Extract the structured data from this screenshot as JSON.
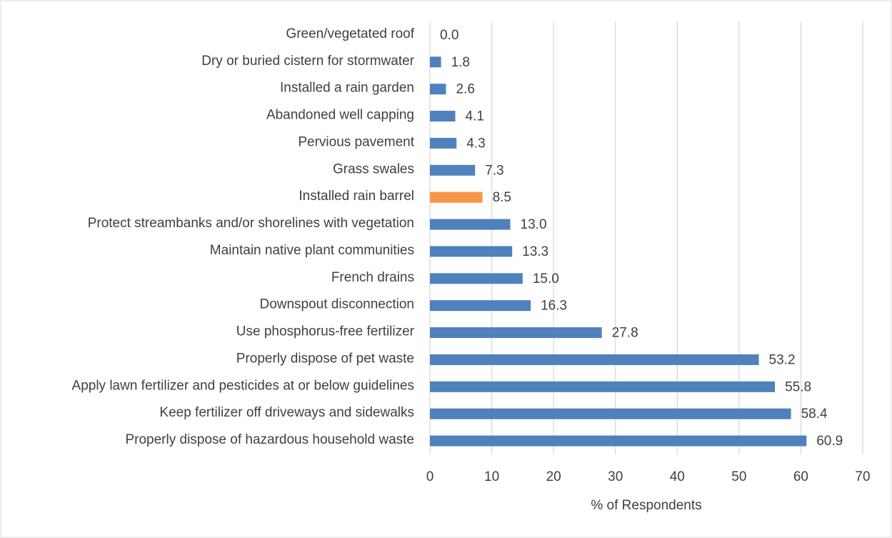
{
  "chart_data": {
    "type": "bar",
    "orientation": "horizontal",
    "categories": [
      "Green/vegetated roof",
      "Dry or buried cistern for stormwater",
      "Installed a rain garden",
      "Abandoned well capping",
      "Pervious pavement",
      "Grass swales",
      "Installed rain barrel",
      "Protect streambanks and/or shorelines with vegetation",
      "Maintain native plant communities",
      "French drains",
      "Downspout disconnection",
      "Use phosphorus-free fertilizer",
      "Properly dispose of pet waste",
      "Apply lawn fertilizer and pesticides at or below guidelines",
      "Keep fertilizer off driveways and sidewalks",
      "Properly dispose of hazardous household waste"
    ],
    "values": [
      0,
      1.8,
      2.6,
      4.1,
      4.3,
      7.3,
      8.5,
      13,
      13.3,
      15,
      16.3,
      27.8,
      53.2,
      55.8,
      58.4,
      60.9
    ],
    "value_labels": [
      "0.0",
      "1.8",
      "2.6",
      "4.1",
      "4.3",
      "7.3",
      "8.5",
      "13.0",
      "13.3",
      "15.0",
      "16.3",
      "27.8",
      "53.2",
      "55.8",
      "58.4",
      "60.9"
    ],
    "colors": [
      "#4f81bd",
      "#4f81bd",
      "#4f81bd",
      "#4f81bd",
      "#4f81bd",
      "#4f81bd",
      "#f79646",
      "#4f81bd",
      "#4f81bd",
      "#4f81bd",
      "#4f81bd",
      "#4f81bd",
      "#4f81bd",
      "#4f81bd",
      "#4f81bd",
      "#4f81bd"
    ],
    "xlabel": "% of Respondents",
    "xlim": [
      0,
      70
    ],
    "xticks": [
      0,
      10,
      20,
      30,
      40,
      50,
      60,
      70
    ],
    "grid": true
  }
}
